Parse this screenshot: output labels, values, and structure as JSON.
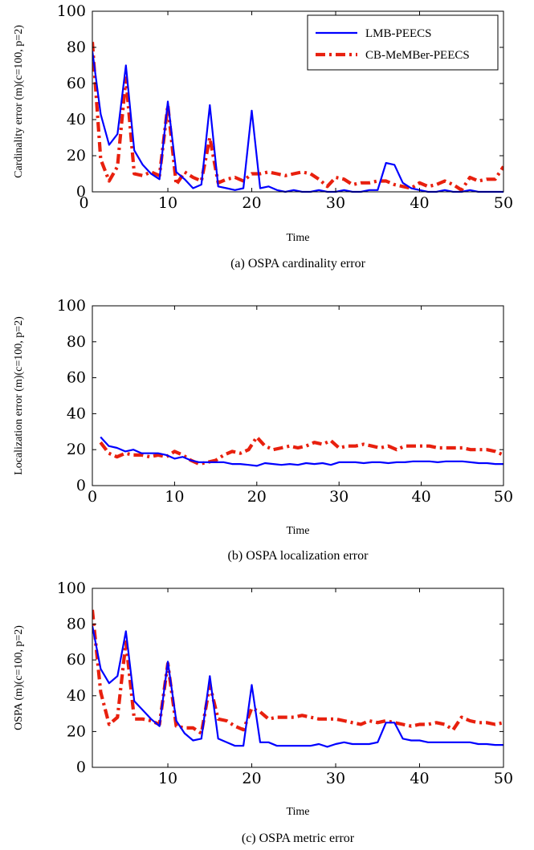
{
  "colors": {
    "lmb": "#0000ff",
    "cb": "#e8200e",
    "axis": "#000000"
  },
  "chart_data": [
    {
      "type": "line",
      "caption": "(a) OSPA cardinality error",
      "xlabel": "Time",
      "ylabel": "Cardinality error (m)(c=100, p=2)",
      "xlim": [
        1,
        50
      ],
      "ylim": [
        0,
        100
      ],
      "xticks": [
        0,
        10,
        20,
        30,
        40,
        50
      ],
      "yticks": [
        0,
        20,
        40,
        60,
        80,
        100
      ],
      "legend": {
        "position": "top-right",
        "entries": [
          "LMB-PEECS",
          "CB-MeMBer-PEECS"
        ]
      },
      "x": [
        1,
        2,
        3,
        4,
        5,
        6,
        7,
        8,
        9,
        10,
        11,
        12,
        13,
        14,
        15,
        16,
        17,
        18,
        19,
        20,
        21,
        22,
        23,
        24,
        25,
        26,
        27,
        28,
        29,
        30,
        31,
        32,
        33,
        34,
        35,
        36,
        37,
        38,
        39,
        40,
        41,
        42,
        43,
        44,
        45,
        46,
        47,
        48,
        49,
        50
      ],
      "series": [
        {
          "name": "LMB-PEECS",
          "style": "solid",
          "values": [
            78,
            43,
            26,
            32,
            70,
            23,
            15,
            10,
            7,
            50,
            11,
            7,
            2,
            4,
            48,
            3,
            2,
            1,
            2,
            45,
            2,
            3,
            1,
            0,
            1,
            0,
            0,
            1,
            0,
            0,
            1,
            0,
            0,
            1,
            1,
            16,
            15,
            5,
            2,
            1,
            0,
            0,
            1,
            0,
            0,
            1,
            0,
            0,
            0,
            0
          ]
        },
        {
          "name": "CB-MeMBer-PEECS",
          "style": "dashdot",
          "values": [
            83,
            18,
            6,
            14,
            63,
            10,
            9,
            11,
            9,
            48,
            4,
            11,
            8,
            6,
            30,
            5,
            7,
            8,
            6,
            10,
            10,
            11,
            10,
            9,
            10,
            11,
            10,
            7,
            3,
            8,
            7,
            4,
            5,
            5,
            6,
            6,
            4,
            3,
            2,
            5,
            3,
            4,
            6,
            4,
            1,
            8,
            6,
            7,
            7,
            14
          ]
        }
      ]
    },
    {
      "type": "line",
      "caption": "(b) OSPA localization error",
      "xlabel": "Time",
      "ylabel": "Localization error (m)(c=100, p=2)",
      "xlim": [
        0,
        50
      ],
      "ylim": [
        0,
        100
      ],
      "xticks": [
        0,
        10,
        20,
        30,
        40,
        50
      ],
      "yticks": [
        0,
        20,
        40,
        60,
        80,
        100
      ],
      "x": [
        1,
        2,
        3,
        4,
        5,
        6,
        7,
        8,
        9,
        10,
        11,
        12,
        13,
        14,
        15,
        16,
        17,
        18,
        19,
        20,
        21,
        22,
        23,
        24,
        25,
        26,
        27,
        28,
        29,
        30,
        31,
        32,
        33,
        34,
        35,
        36,
        37,
        38,
        39,
        40,
        41,
        42,
        43,
        44,
        45,
        46,
        47,
        48,
        49,
        50
      ],
      "series": [
        {
          "name": "LMB-PEECS",
          "style": "solid",
          "values": [
            27,
            22,
            21,
            19,
            20,
            18,
            18,
            18,
            17,
            15,
            16,
            14,
            13,
            13,
            13,
            13,
            12,
            12,
            11.5,
            11,
            12.5,
            12,
            11.5,
            12,
            11.5,
            12.5,
            12,
            12.5,
            11.5,
            13,
            13,
            13,
            12.5,
            13,
            13,
            12.5,
            13,
            13,
            13.5,
            13.5,
            13.5,
            13,
            13.5,
            13.5,
            13.5,
            13,
            12.5,
            12.5,
            12,
            12
          ]
        },
        {
          "name": "CB-MeMBer-PEECS",
          "style": "dashdot",
          "values": [
            24,
            18,
            16,
            18,
            17,
            17,
            16,
            17,
            16,
            19,
            17,
            14,
            12,
            13,
            14,
            17,
            19,
            18,
            20,
            27,
            22,
            20,
            21,
            22,
            21,
            22,
            24,
            23,
            25,
            21,
            22,
            22,
            23,
            22,
            21,
            22,
            20,
            22,
            22,
            22,
            22,
            21,
            21,
            21,
            21,
            20,
            20,
            20,
            19,
            17
          ]
        }
      ]
    },
    {
      "type": "line",
      "caption": "(c) OSPA metric error",
      "xlabel": "Time",
      "ylabel": "OSPA (m)(c=100, p=2)",
      "xlim": [
        1,
        50
      ],
      "ylim": [
        0,
        100
      ],
      "xticks": [
        10,
        20,
        30,
        40,
        50
      ],
      "yticks": [
        0,
        20,
        40,
        60,
        80,
        100
      ],
      "x": [
        1,
        2,
        3,
        4,
        5,
        6,
        7,
        8,
        9,
        10,
        11,
        12,
        13,
        14,
        15,
        16,
        17,
        18,
        19,
        20,
        21,
        22,
        23,
        24,
        25,
        26,
        27,
        28,
        29,
        30,
        31,
        32,
        33,
        34,
        35,
        36,
        37,
        38,
        39,
        40,
        41,
        42,
        43,
        44,
        45,
        46,
        47,
        48,
        49,
        50
      ],
      "series": [
        {
          "name": "LMB-PEECS",
          "style": "solid",
          "values": [
            79,
            55,
            47,
            51,
            76,
            37,
            32,
            27,
            23,
            59,
            26,
            19,
            15,
            16,
            51,
            16,
            14,
            12,
            12,
            46,
            14,
            14,
            12,
            12,
            12,
            12,
            12,
            13,
            11.5,
            13,
            14,
            13,
            13,
            13,
            14,
            25,
            25,
            16,
            15,
            15,
            14,
            14,
            14,
            14,
            14,
            14,
            13,
            13,
            12.5,
            12.5
          ]
        },
        {
          "name": "CB-MeMBer-PEECS",
          "style": "dashdot",
          "values": [
            88,
            42,
            24,
            28,
            70,
            27,
            27,
            26,
            24,
            58,
            23,
            22,
            22,
            19,
            46,
            27,
            26,
            23,
            21,
            33,
            31,
            27,
            28,
            28,
            28,
            29,
            28,
            27,
            27,
            27,
            26,
            25,
            24,
            26,
            25,
            26,
            25,
            24,
            23,
            24,
            24,
            25,
            24,
            21,
            28,
            26,
            25,
            25,
            24,
            25
          ]
        }
      ]
    }
  ]
}
